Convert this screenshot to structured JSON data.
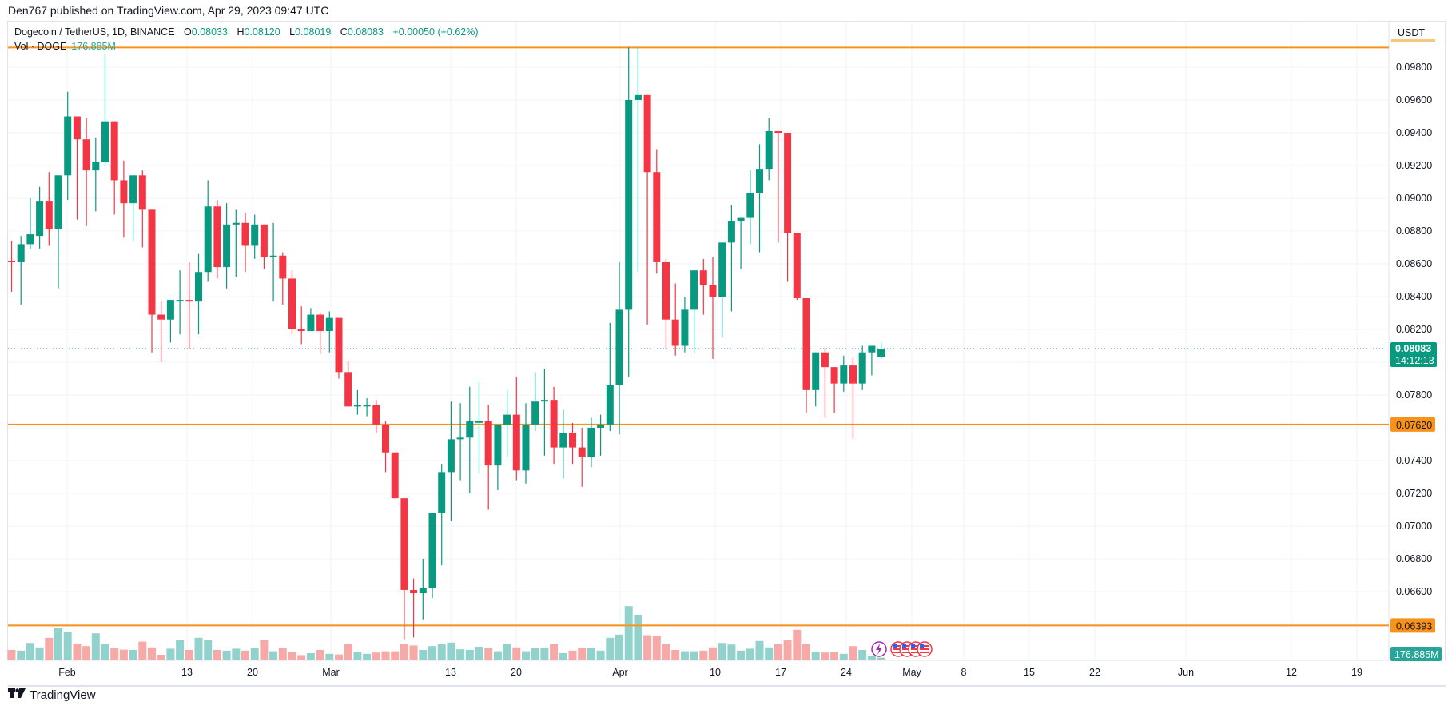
{
  "header": {
    "published": "Den767 published on TradingView.com, Apr 29, 2023 09:47 UTC"
  },
  "legend": {
    "symbol": "Dogecoin / TetherUS, 1D, BINANCE",
    "o_label": "O",
    "o": "0.08033",
    "h_label": "H",
    "h": "0.08120",
    "l_label": "L",
    "l": "0.08019",
    "c_label": "C",
    "c": "0.08083",
    "change": "+0.00050 (+0.62%)",
    "vol_label": "Vol · DOGE",
    "vol_value": "176.885M"
  },
  "price_axis": {
    "currency": "USDT",
    "ticks": [
      "0.09800",
      "0.09600",
      "0.09400",
      "0.09200",
      "0.09000",
      "0.08800",
      "0.08600",
      "0.08400",
      "0.08200",
      "0.07800",
      "0.07400",
      "0.07200",
      "0.07000",
      "0.06800",
      "0.06600"
    ],
    "last_price": "0.08083",
    "countdown": "14:12:13",
    "level_mid": "0.07620",
    "level_low": "0.06393",
    "vol_badge": "176.885M"
  },
  "time_axis": {
    "labels": [
      "Feb",
      "13",
      "20",
      "Mar",
      "13",
      "20",
      "Apr",
      "10",
      "17",
      "24",
      "May",
      "8",
      "15",
      "22",
      "Jun",
      "12",
      "19"
    ]
  },
  "footer": {
    "logo": "17",
    "brand": "TradingView"
  },
  "colors": {
    "up": "#089981",
    "down": "#f23645",
    "vol_up": "#92d2cc",
    "vol_down": "#f7a9a7",
    "level": "#f7931a",
    "grid": "#f0f3fa"
  },
  "chart_data": {
    "type": "candlestick",
    "title": "Dogecoin / TetherUS, 1D, BINANCE",
    "ylabel": "USDT",
    "ylim": [
      0.0628,
      0.0992
    ],
    "horizontal_levels": [
      0.0992,
      0.0762,
      0.06393
    ],
    "x_start": "2023-01-26",
    "dates": [
      "Jan 26",
      "Jan 27",
      "Jan 28",
      "Jan 29",
      "Jan 30",
      "Jan 31",
      "Feb 1",
      "Feb 2",
      "Feb 3",
      "Feb 4",
      "Feb 5",
      "Feb 6",
      "Feb 7",
      "Feb 8",
      "Feb 9",
      "Feb 10",
      "Feb 11",
      "Feb 12",
      "Feb 13",
      "Feb 14",
      "Feb 15",
      "Feb 16",
      "Feb 17",
      "Feb 18",
      "Feb 19",
      "Feb 20",
      "Feb 21",
      "Feb 22",
      "Feb 23",
      "Feb 24",
      "Feb 25",
      "Feb 26",
      "Feb 27",
      "Feb 28",
      "Mar 1",
      "Mar 2",
      "Mar 3",
      "Mar 4",
      "Mar 5",
      "Mar 6",
      "Mar 7",
      "Mar 8",
      "Mar 9",
      "Mar 10",
      "Mar 11",
      "Mar 12",
      "Mar 13",
      "Mar 14",
      "Mar 15",
      "Mar 16",
      "Mar 17",
      "Mar 18",
      "Mar 19",
      "Mar 20",
      "Mar 21",
      "Mar 22",
      "Mar 23",
      "Mar 24",
      "Mar 25",
      "Mar 26",
      "Mar 27",
      "Mar 28",
      "Mar 29",
      "Mar 30",
      "Mar 31",
      "Apr 1",
      "Apr 2",
      "Apr 3",
      "Apr 4",
      "Apr 5",
      "Apr 6",
      "Apr 7",
      "Apr 8",
      "Apr 9",
      "Apr 10",
      "Apr 11",
      "Apr 12",
      "Apr 13",
      "Apr 14",
      "Apr 15",
      "Apr 16",
      "Apr 17",
      "Apr 18",
      "Apr 19",
      "Apr 20",
      "Apr 21",
      "Apr 22",
      "Apr 23",
      "Apr 24",
      "Apr 25",
      "Apr 26",
      "Apr 27",
      "Apr 28",
      "Apr 29"
    ],
    "ohlc": [
      [
        0.0862,
        0.0874,
        0.0843,
        0.0861
      ],
      [
        0.0861,
        0.0877,
        0.0835,
        0.0872
      ],
      [
        0.0872,
        0.09,
        0.0869,
        0.0878
      ],
      [
        0.0877,
        0.0907,
        0.0869,
        0.0898
      ],
      [
        0.0898,
        0.0916,
        0.0871,
        0.0881
      ],
      [
        0.0881,
        0.0906,
        0.0845,
        0.0914
      ],
      [
        0.0914,
        0.0965,
        0.0899,
        0.095
      ],
      [
        0.095,
        0.0935,
        0.0887,
        0.0936
      ],
      [
        0.0936,
        0.0949,
        0.0883,
        0.0917
      ],
      [
        0.0917,
        0.0937,
        0.0892,
        0.0922
      ],
      [
        0.0922,
        0.0988,
        0.092,
        0.0947
      ],
      [
        0.0947,
        0.0945,
        0.089,
        0.0911
      ],
      [
        0.0911,
        0.0923,
        0.0876,
        0.0897
      ],
      [
        0.0897,
        0.0913,
        0.0874,
        0.0914
      ],
      [
        0.0914,
        0.0917,
        0.087,
        0.0893
      ],
      [
        0.0893,
        0.0893,
        0.0806,
        0.0829
      ],
      [
        0.0829,
        0.0837,
        0.08,
        0.0826
      ],
      [
        0.0826,
        0.0836,
        0.0812,
        0.0838
      ],
      [
        0.0838,
        0.0856,
        0.0817,
        0.0838
      ],
      [
        0.0838,
        0.0861,
        0.0808,
        0.0837
      ],
      [
        0.0837,
        0.0866,
        0.0817,
        0.0855
      ],
      [
        0.0855,
        0.0911,
        0.0849,
        0.0895
      ],
      [
        0.0895,
        0.0899,
        0.0851,
        0.0858
      ],
      [
        0.0858,
        0.0897,
        0.0845,
        0.0884
      ],
      [
        0.0884,
        0.0893,
        0.0852,
        0.0885
      ],
      [
        0.0885,
        0.0891,
        0.0855,
        0.0871
      ],
      [
        0.0871,
        0.089,
        0.0863,
        0.0884
      ],
      [
        0.0884,
        0.0882,
        0.0857,
        0.0864
      ],
      [
        0.0864,
        0.0885,
        0.0837,
        0.0865
      ],
      [
        0.0865,
        0.0867,
        0.0835,
        0.0851
      ],
      [
        0.0851,
        0.0856,
        0.0817,
        0.082
      ],
      [
        0.082,
        0.0834,
        0.0811,
        0.0819
      ],
      [
        0.0819,
        0.0833,
        0.082,
        0.0829
      ],
      [
        0.0829,
        0.083,
        0.0805,
        0.0819
      ],
      [
        0.0819,
        0.0831,
        0.0806,
        0.0827
      ],
      [
        0.0827,
        0.0824,
        0.079,
        0.0794
      ],
      [
        0.0794,
        0.0801,
        0.078,
        0.0773
      ],
      [
        0.0773,
        0.0783,
        0.0768,
        0.0774
      ],
      [
        0.0774,
        0.0778,
        0.0767,
        0.0774
      ],
      [
        0.0774,
        0.0777,
        0.0757,
        0.0762
      ],
      [
        0.0762,
        0.0764,
        0.0733,
        0.0745
      ],
      [
        0.0745,
        0.0735,
        0.0717,
        0.0717
      ],
      [
        0.0717,
        0.0717,
        0.0631,
        0.0661
      ],
      [
        0.0661,
        0.0668,
        0.0632,
        0.0659
      ],
      [
        0.0659,
        0.068,
        0.0643,
        0.0662
      ],
      [
        0.0662,
        0.0708,
        0.0656,
        0.0708
      ],
      [
        0.0708,
        0.0738,
        0.0676,
        0.0733
      ],
      [
        0.0733,
        0.0776,
        0.0703,
        0.0753
      ],
      [
        0.0753,
        0.0775,
        0.0728,
        0.0754
      ],
      [
        0.0754,
        0.0785,
        0.072,
        0.0764
      ],
      [
        0.0764,
        0.0788,
        0.0732,
        0.0764
      ],
      [
        0.0764,
        0.0774,
        0.071,
        0.0737
      ],
      [
        0.0737,
        0.0762,
        0.0722,
        0.0762
      ],
      [
        0.0762,
        0.0783,
        0.0742,
        0.0768
      ],
      [
        0.0768,
        0.0791,
        0.0728,
        0.0734
      ],
      [
        0.0734,
        0.0775,
        0.0726,
        0.0762
      ],
      [
        0.0762,
        0.0794,
        0.0758,
        0.0776
      ],
      [
        0.0776,
        0.0796,
        0.0743,
        0.0777
      ],
      [
        0.0777,
        0.0785,
        0.0738,
        0.0748
      ],
      [
        0.0748,
        0.0771,
        0.0729,
        0.0757
      ],
      [
        0.0757,
        0.0763,
        0.0738,
        0.0748
      ],
      [
        0.0748,
        0.076,
        0.0724,
        0.0742
      ],
      [
        0.0742,
        0.0766,
        0.0736,
        0.076
      ],
      [
        0.076,
        0.0768,
        0.0743,
        0.0762
      ],
      [
        0.0762,
        0.0824,
        0.0758,
        0.0786
      ],
      [
        0.0786,
        0.0861,
        0.0756,
        0.0832
      ],
      [
        0.0832,
        0.0992,
        0.0791,
        0.096
      ],
      [
        0.096,
        0.0992,
        0.0855,
        0.0963
      ],
      [
        0.0963,
        0.0906,
        0.0823,
        0.0916
      ],
      [
        0.0916,
        0.093,
        0.0854,
        0.0861
      ],
      [
        0.0861,
        0.0863,
        0.0808,
        0.0826
      ],
      [
        0.0826,
        0.0848,
        0.0804,
        0.081
      ],
      [
        0.081,
        0.084,
        0.0806,
        0.0832
      ],
      [
        0.0832,
        0.0852,
        0.0805,
        0.0856
      ],
      [
        0.0856,
        0.0863,
        0.0829,
        0.0847
      ],
      [
        0.0847,
        0.0864,
        0.0802,
        0.084
      ],
      [
        0.084,
        0.0873,
        0.0815,
        0.0873
      ],
      [
        0.0873,
        0.0896,
        0.0831,
        0.0886
      ],
      [
        0.0886,
        0.0888,
        0.0857,
        0.0888
      ],
      [
        0.0888,
        0.0917,
        0.0872,
        0.0903
      ],
      [
        0.0903,
        0.0933,
        0.0867,
        0.0918
      ],
      [
        0.0918,
        0.0949,
        0.0911,
        0.0941
      ],
      [
        0.0941,
        0.0933,
        0.0873,
        0.094
      ],
      [
        0.094,
        0.0936,
        0.0849,
        0.0879
      ],
      [
        0.0879,
        0.0866,
        0.0838,
        0.0839
      ],
      [
        0.0839,
        0.0813,
        0.0769,
        0.0783
      ],
      [
        0.0783,
        0.0806,
        0.0773,
        0.0806
      ],
      [
        0.0806,
        0.0809,
        0.0766,
        0.0797
      ],
      [
        0.0797,
        0.0795,
        0.0769,
        0.0787
      ],
      [
        0.0787,
        0.0804,
        0.0782,
        0.0798
      ],
      [
        0.0798,
        0.0803,
        0.0753,
        0.0787
      ],
      [
        0.0787,
        0.081,
        0.0783,
        0.0806
      ],
      [
        0.0806,
        0.0808,
        0.0792,
        0.081
      ],
      [
        0.0803,
        0.0812,
        0.0802,
        0.0808
      ]
    ],
    "volume_relative": [
      0.3,
      0.28,
      0.52,
      0.38,
      0.68,
      1.0,
      0.85,
      0.5,
      0.42,
      0.82,
      0.48,
      0.36,
      0.31,
      0.3,
      0.56,
      0.38,
      0.15,
      0.34,
      0.6,
      0.3,
      0.68,
      0.6,
      0.3,
      0.28,
      0.34,
      0.28,
      0.36,
      0.6,
      0.26,
      0.36,
      0.24,
      0.14,
      0.2,
      0.3,
      0.18,
      0.16,
      0.48,
      0.24,
      0.18,
      0.22,
      0.26,
      0.26,
      0.5,
      0.44,
      0.3,
      0.42,
      0.48,
      0.53,
      0.32,
      0.3,
      0.4,
      0.36,
      0.26,
      0.48,
      0.38,
      0.26,
      0.36,
      0.35,
      0.5,
      0.2,
      0.28,
      0.36,
      0.35,
      0.28,
      0.68,
      0.78,
      1.67,
      1.4,
      0.76,
      0.74,
      0.48,
      0.3,
      0.26,
      0.26,
      0.28,
      0.38,
      0.52,
      0.47,
      0.28,
      0.34,
      0.58,
      0.38,
      0.48,
      0.6,
      0.93,
      0.48,
      0.24,
      0.22,
      0.24,
      0.18,
      0.42,
      0.3,
      0.1,
      0.06
    ]
  }
}
